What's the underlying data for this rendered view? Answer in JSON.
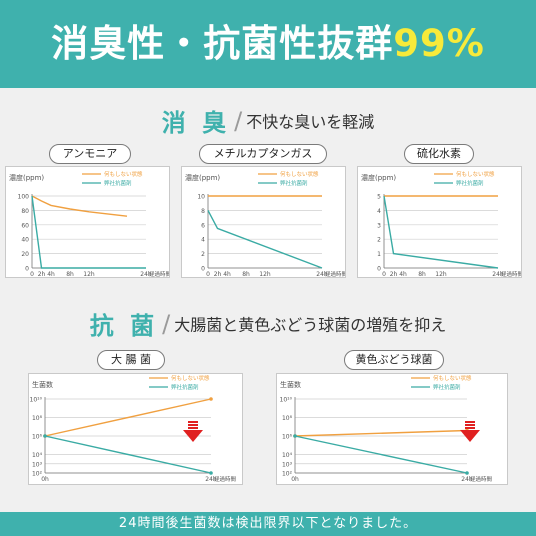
{
  "header": {
    "title_main": "消臭性・抗菌性抜群",
    "title_accent": "99%"
  },
  "deodorant_section": {
    "title": "消 臭",
    "subtitle": "不快な臭いを軽減"
  },
  "antibacterial_section": {
    "title": "抗 菌",
    "subtitle": "大腸菌と黄色ぶどう球菌の増殖を抑え"
  },
  "footer": {
    "note": "24時間後生菌数は検出限界以下となりました。"
  },
  "colors": {
    "brand": "#3fb1ad",
    "untreated": "#f0a040",
    "treated": "#3aaba4",
    "arrow": "#e02020",
    "accent_yellow": "#f7ea3a"
  },
  "chart_data": [
    {
      "type": "line",
      "title": "アンモニア",
      "ylabel": "濃度(ppm)",
      "xlabel": "経過時間",
      "x": [
        "0",
        "2h",
        "4h",
        "8h",
        "12h",
        "24h"
      ],
      "x_values": [
        0,
        2,
        4,
        8,
        12,
        24
      ],
      "ylim": [
        0,
        100
      ],
      "yticks": [
        "0",
        "20",
        "40",
        "60",
        "80",
        "100"
      ],
      "ytick_values": [
        0,
        20,
        40,
        60,
        80,
        100
      ],
      "series": [
        {
          "name": "何もしない状態",
          "color": "#f0a040",
          "x": [
            0,
            2,
            4,
            8,
            12,
            20
          ],
          "y": [
            100,
            93,
            87,
            82,
            78,
            72
          ]
        },
        {
          "name": "弊社抗菌剤",
          "color": "#3aaba4",
          "x": [
            0,
            2,
            4,
            8,
            12,
            24
          ],
          "y": [
            100,
            0,
            0,
            0,
            0,
            0
          ]
        }
      ]
    },
    {
      "type": "line",
      "title": "メチルカプタンガス",
      "ylabel": "濃度(ppm)",
      "xlabel": "経過時間",
      "x": [
        "0",
        "2h",
        "4h",
        "8h",
        "12h",
        "24h"
      ],
      "x_values": [
        0,
        2,
        4,
        8,
        12,
        24
      ],
      "ylim": [
        0,
        10
      ],
      "yticks": [
        "0",
        "2",
        "4",
        "6",
        "8",
        "10"
      ],
      "ytick_values": [
        0,
        2,
        4,
        6,
        8,
        10
      ],
      "series": [
        {
          "name": "何もしない状態",
          "color": "#f0a040",
          "x": [
            0,
            24
          ],
          "y": [
            10,
            10
          ]
        },
        {
          "name": "弊社抗菌剤",
          "color": "#3aaba4",
          "x": [
            0,
            2,
            24
          ],
          "y": [
            8,
            5.5,
            0
          ]
        }
      ]
    },
    {
      "type": "line",
      "title": "硫化水素",
      "ylabel": "濃度(ppm)",
      "xlabel": "経過時間",
      "x": [
        "0",
        "2h",
        "4h",
        "8h",
        "12h",
        "24h"
      ],
      "x_values": [
        0,
        2,
        4,
        8,
        12,
        24
      ],
      "ylim": [
        0,
        5
      ],
      "yticks": [
        "0",
        "1",
        "2",
        "3",
        "4",
        "5"
      ],
      "ytick_values": [
        0,
        1,
        2,
        3,
        4,
        5
      ],
      "series": [
        {
          "name": "何もしない状態",
          "color": "#f0a040",
          "x": [
            0,
            24
          ],
          "y": [
            5,
            5
          ]
        },
        {
          "name": "弊社抗菌剤",
          "color": "#3aaba4",
          "x": [
            0,
            2,
            24
          ],
          "y": [
            5,
            1,
            0
          ]
        }
      ]
    },
    {
      "type": "line",
      "title": "大 腸 菌",
      "ylabel": "生菌数",
      "xlabel": "経過時間",
      "y_scale": "log",
      "x": [
        "0h",
        "24h"
      ],
      "x_values": [
        0,
        24
      ],
      "ylim": [
        2,
        10
      ],
      "yticks": [
        "10²",
        "10³",
        "10⁴",
        "10⁶",
        "10⁸",
        "10¹⁰"
      ],
      "ytick_values": [
        2,
        3,
        4,
        6,
        8,
        10
      ],
      "series": [
        {
          "name": "何もしない状態",
          "color": "#f0a040",
          "x": [
            0,
            24
          ],
          "y": [
            6,
            10
          ]
        },
        {
          "name": "弊社抗菌剤",
          "color": "#3aaba4",
          "x": [
            0,
            24
          ],
          "y": [
            6,
            2
          ]
        }
      ],
      "annotation": "down-arrow"
    },
    {
      "type": "line",
      "title": "黄色ぶどう球菌",
      "ylabel": "生菌数",
      "xlabel": "経過時間",
      "y_scale": "log",
      "x": [
        "0h",
        "24h"
      ],
      "x_values": [
        0,
        24
      ],
      "ylim": [
        2,
        10
      ],
      "yticks": [
        "10²",
        "10³",
        "10⁴",
        "10⁶",
        "10⁸",
        "10¹⁰"
      ],
      "ytick_values": [
        2,
        3,
        4,
        6,
        8,
        10
      ],
      "series": [
        {
          "name": "何もしない状態",
          "color": "#f0a040",
          "x": [
            0,
            24
          ],
          "y": [
            6,
            6.6
          ]
        },
        {
          "name": "弊社抗菌剤",
          "color": "#3aaba4",
          "x": [
            0,
            24
          ],
          "y": [
            6,
            2
          ]
        }
      ],
      "annotation": "down-arrow"
    }
  ]
}
